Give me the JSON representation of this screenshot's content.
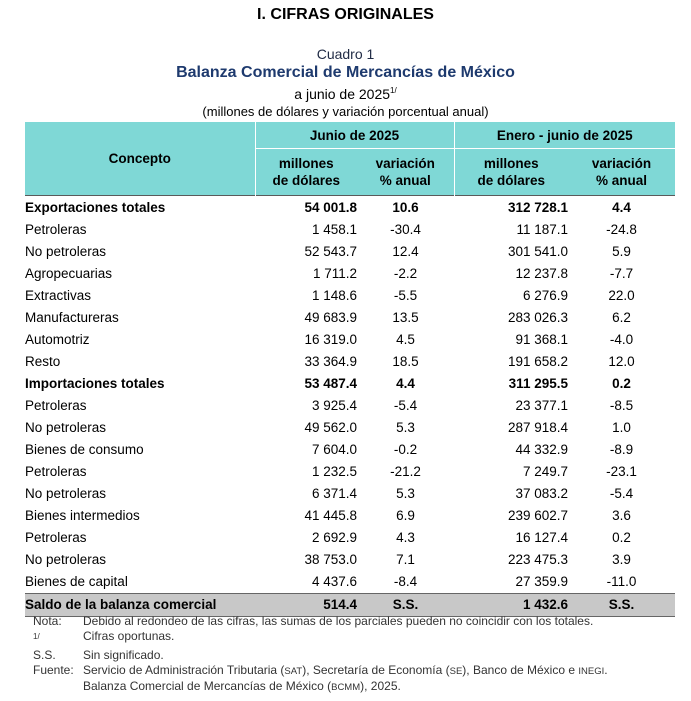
{
  "section_title": "I. CIFRAS ORIGINALES",
  "caption": {
    "number": "Cuadro 1",
    "title": "Balanza Comercial de Mercancías de México",
    "period": "a junio de 2025",
    "period_note": "1/",
    "units": "(millones de dólares y variación porcentual anual)"
  },
  "table": {
    "concept_header": "Concepto",
    "group1": "Junio de 2025",
    "group2": "Enero - junio de 2025",
    "col_millions_1": "millones",
    "col_millions_2": "de dólares",
    "col_var_1": "variación",
    "col_var_2": "% anual",
    "rows": [
      {
        "concept": "Exportaciones totales",
        "jun_val": "54 001.8",
        "jun_var": "10.6",
        "ytd_val": "312 728.1",
        "ytd_var": "4.4"
      },
      {
        "concept": "Petroleras",
        "jun_val": "1 458.1",
        "jun_var": "-30.4",
        "ytd_val": "11 187.1",
        "ytd_var": "-24.8"
      },
      {
        "concept": "No petroleras",
        "jun_val": "52 543.7",
        "jun_var": "12.4",
        "ytd_val": "301 541.0",
        "ytd_var": "5.9"
      },
      {
        "concept": "Agropecuarias",
        "jun_val": "1 711.2",
        "jun_var": "-2.2",
        "ytd_val": "12 237.8",
        "ytd_var": "-7.7"
      },
      {
        "concept": "Extractivas",
        "jun_val": "1 148.6",
        "jun_var": "-5.5",
        "ytd_val": "6 276.9",
        "ytd_var": "22.0"
      },
      {
        "concept": "Manufactureras",
        "jun_val": "49 683.9",
        "jun_var": "13.5",
        "ytd_val": "283 026.3",
        "ytd_var": "6.2"
      },
      {
        "concept": "Automotriz",
        "jun_val": "16 319.0",
        "jun_var": "4.5",
        "ytd_val": "91 368.1",
        "ytd_var": "-4.0"
      },
      {
        "concept": "Resto",
        "jun_val": "33 364.9",
        "jun_var": "18.5",
        "ytd_val": "191 658.2",
        "ytd_var": "12.0"
      },
      {
        "concept": "Importaciones totales",
        "jun_val": "53 487.4",
        "jun_var": "4.4",
        "ytd_val": "311 295.5",
        "ytd_var": "0.2"
      },
      {
        "concept": "Petroleras",
        "jun_val": "3 925.4",
        "jun_var": "-5.4",
        "ytd_val": "23 377.1",
        "ytd_var": "-8.5"
      },
      {
        "concept": "No petroleras",
        "jun_val": "49 562.0",
        "jun_var": "5.3",
        "ytd_val": "287 918.4",
        "ytd_var": "1.0"
      },
      {
        "concept": "Bienes de consumo",
        "jun_val": "7 604.0",
        "jun_var": "-0.2",
        "ytd_val": "44 332.9",
        "ytd_var": "-8.9"
      },
      {
        "concept": "Petroleras",
        "jun_val": "1 232.5",
        "jun_var": "-21.2",
        "ytd_val": "7 249.7",
        "ytd_var": "-23.1"
      },
      {
        "concept": "No petroleras",
        "jun_val": "6 371.4",
        "jun_var": "5.3",
        "ytd_val": "37 083.2",
        "ytd_var": "-5.4"
      },
      {
        "concept": "Bienes intermedios",
        "jun_val": "41 445.8",
        "jun_var": "6.9",
        "ytd_val": "239 602.7",
        "ytd_var": "3.6"
      },
      {
        "concept": "Petroleras",
        "jun_val": "2 692.9",
        "jun_var": "4.3",
        "ytd_val": "16 127.4",
        "ytd_var": "0.2"
      },
      {
        "concept": "No petroleras",
        "jun_val": "38 753.0",
        "jun_var": "7.1",
        "ytd_val": "223 475.3",
        "ytd_var": "3.9"
      },
      {
        "concept": "Bienes de capital",
        "jun_val": "4 437.6",
        "jun_var": "-8.4",
        "ytd_val": "27 359.9",
        "ytd_var": "-11.0"
      },
      {
        "concept": "Saldo de la balanza comercial",
        "jun_val": "514.4",
        "jun_var": "S.S.",
        "ytd_val": "1 432.6",
        "ytd_var": "S.S."
      }
    ]
  },
  "notes": {
    "nota_label": "Nota:",
    "nota_text": "Debido al redondeo de las cifras, las sumas de los parciales pueden no coincidir con los totales.",
    "fn_label": "1/",
    "fn_text": "Cifras oportunas.",
    "ss_label": "S.S.",
    "ss_text": "Sin significado.",
    "fuente_label": "Fuente:",
    "fuente_a": "Servicio de Administración Tributaria (",
    "sat": "SAT",
    "fuente_b": "), Secretaría de Economía (",
    "se": "SE",
    "fuente_c": "), Banco de México e ",
    "inegi": "INEGI",
    "fuente_d": ".",
    "fuente_line2a": "Balanza Comercial de Mercancías de México (",
    "bcmm": "BCMM",
    "fuente_line2b": "), 2025."
  }
}
